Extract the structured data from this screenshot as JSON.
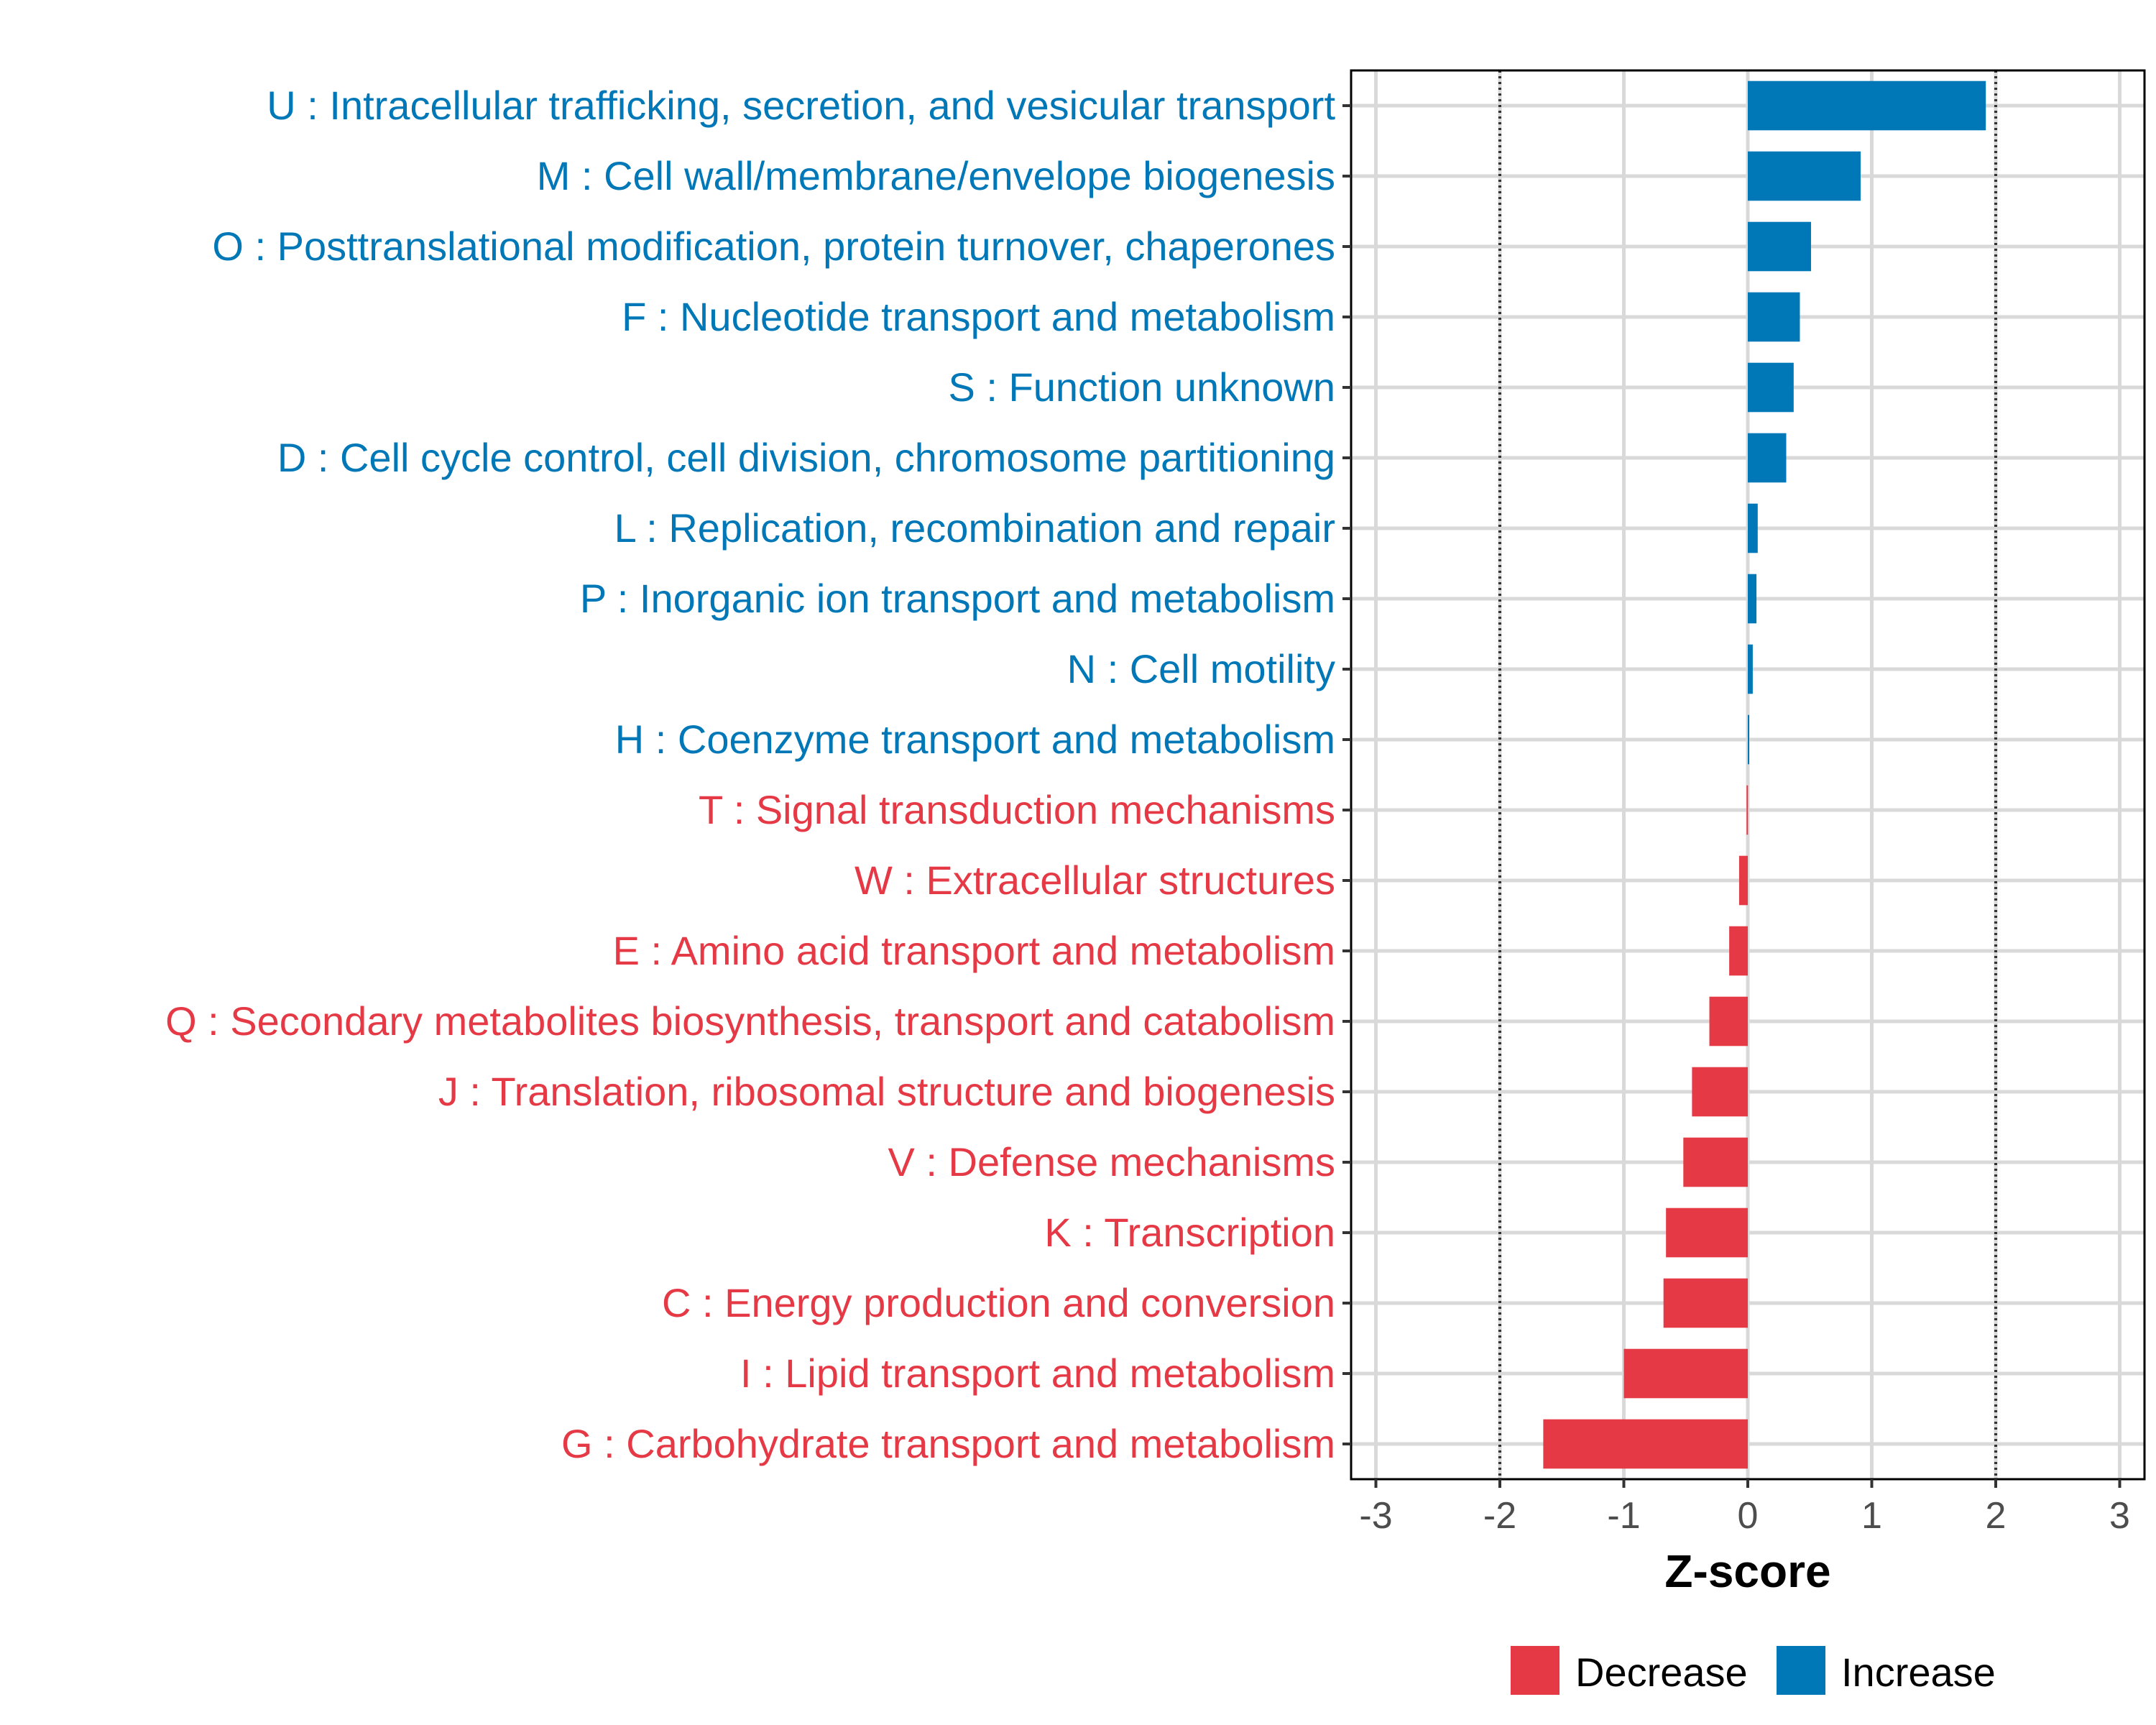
{
  "chart_data": {
    "type": "bar",
    "orientation": "horizontal",
    "categories": [
      "U : Intracellular trafficking, secretion, and vesicular transport",
      "M : Cell wall/membrane/envelope biogenesis",
      "O : Posttranslational modification, protein turnover, chaperones",
      "F : Nucleotide transport and metabolism",
      "S : Function unknown",
      "D : Cell cycle control, cell division, chromosome partitioning",
      "L : Replication, recombination and repair",
      "P : Inorganic ion transport and metabolism",
      "N : Cell motility",
      "H : Coenzyme transport and metabolism",
      "T : Signal transduction mechanisms",
      "W : Extracellular structures",
      "E : Amino acid transport and metabolism",
      "Q : Secondary metabolites biosynthesis, transport and catabolism",
      "J : Translation, ribosomal structure and biogenesis",
      "V : Defense mechanisms",
      "K : Transcription",
      "C : Energy production and conversion",
      "I : Lipid transport and metabolism",
      "G : Carbohydrate transport and metabolism"
    ],
    "values": [
      1.92,
      0.91,
      0.51,
      0.42,
      0.37,
      0.31,
      0.08,
      0.07,
      0.04,
      0.01,
      -0.01,
      -0.07,
      -0.15,
      -0.31,
      -0.45,
      -0.52,
      -0.66,
      -0.68,
      -1.0,
      -1.65
    ],
    "groups": [
      "Increase",
      "Increase",
      "Increase",
      "Increase",
      "Increase",
      "Increase",
      "Increase",
      "Increase",
      "Increase",
      "Increase",
      "Decrease",
      "Decrease",
      "Decrease",
      "Decrease",
      "Decrease",
      "Decrease",
      "Decrease",
      "Decrease",
      "Decrease",
      "Decrease"
    ],
    "xlabel": "Z-score",
    "ylabel": "",
    "xlim": [
      -3.2,
      3.2
    ],
    "xticks": [
      -3,
      -2,
      -1,
      0,
      1,
      2,
      3
    ],
    "xtick_labels": [
      "-3",
      "-2",
      "-1",
      "0",
      "1",
      "2",
      "3"
    ],
    "reference_lines": [
      -2,
      2
    ],
    "grid": true,
    "legend": {
      "position": "bottom",
      "entries": [
        {
          "label": "Decrease",
          "color": "#E63946"
        },
        {
          "label": "Increase",
          "color": "#0077B6"
        }
      ]
    },
    "colors": {
      "Increase": "#0077B6",
      "Decrease": "#E63946",
      "grid": "#d9d9d9",
      "axis": "#000000"
    }
  }
}
